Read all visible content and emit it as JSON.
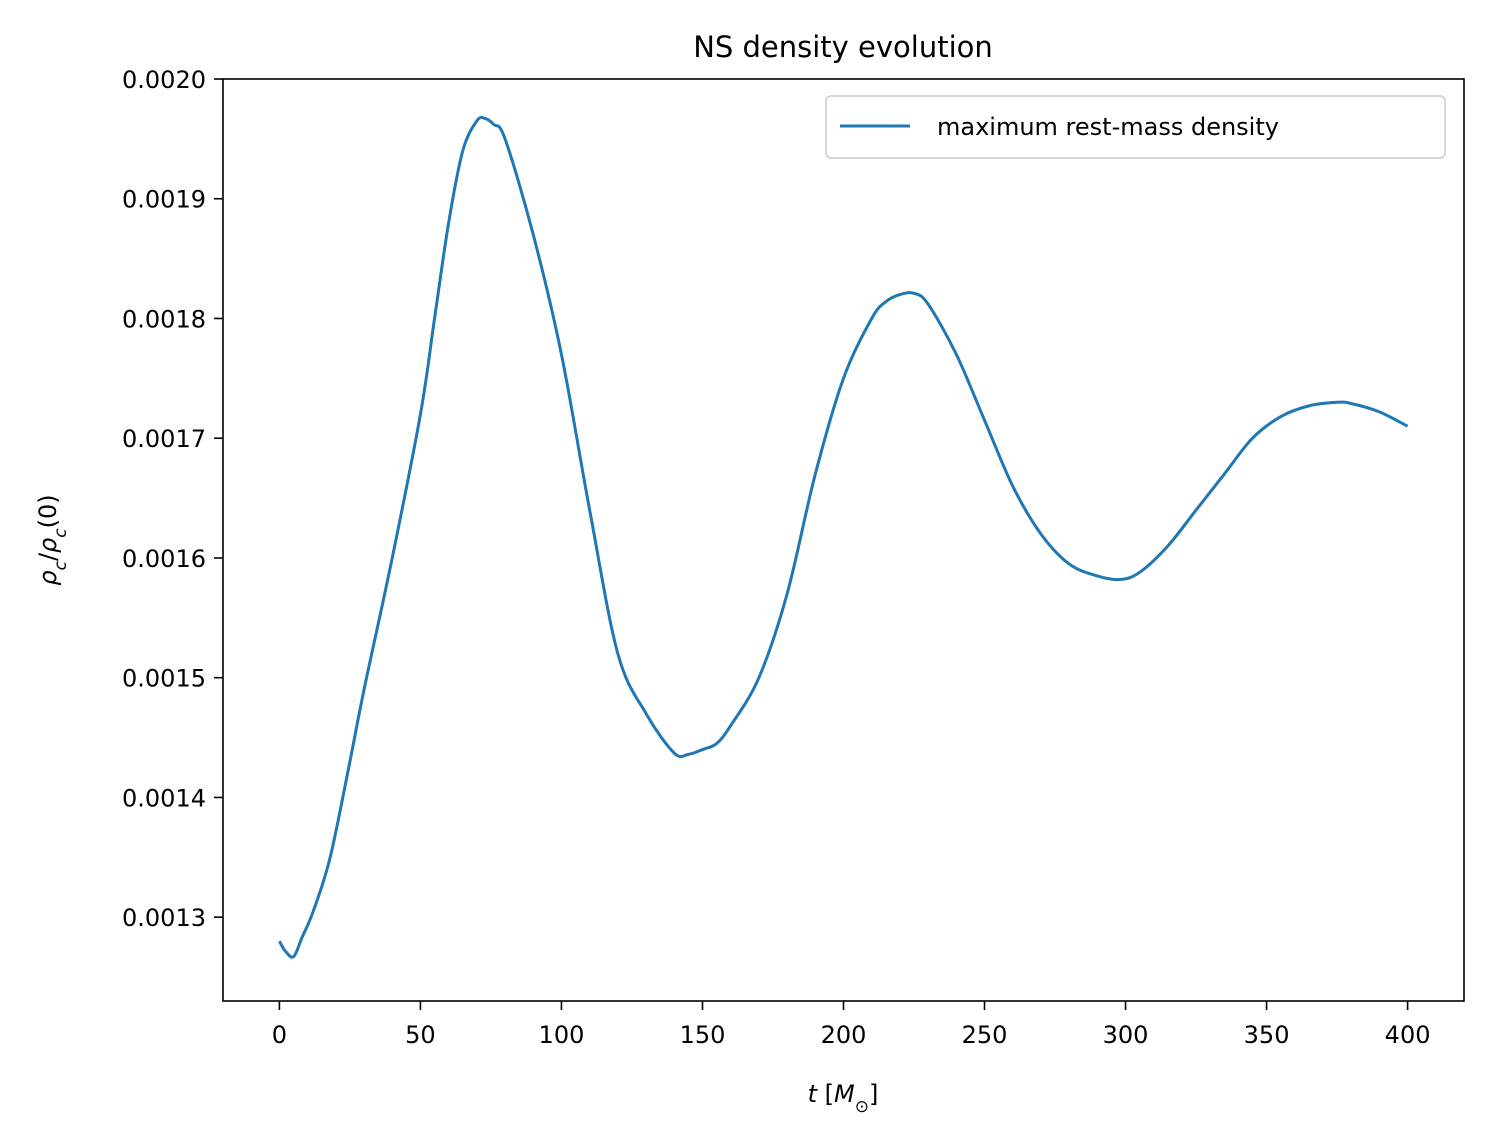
{
  "chart_data": {
    "type": "line",
    "title": "NS density evolution",
    "xlabel": "t [M⊙]",
    "ylabel": "ρc/ρc(0)",
    "xlim": [
      -20,
      420
    ],
    "ylim": [
      0.00123,
      0.002
    ],
    "xticks": [
      0,
      50,
      100,
      150,
      200,
      250,
      300,
      350,
      400
    ],
    "xtick_labels": [
      "0",
      "50",
      "100",
      "150",
      "200",
      "250",
      "300",
      "350",
      "400"
    ],
    "yticks": [
      0.0013,
      0.0014,
      0.0015,
      0.0016,
      0.0017,
      0.0018,
      0.0019,
      0.002
    ],
    "ytick_labels": [
      "0.0013",
      "0.0014",
      "0.0015",
      "0.0016",
      "0.0017",
      "0.0018",
      "0.0019",
      "0.0020"
    ],
    "grid": false,
    "legend_position": "top-right",
    "series": [
      {
        "name": "maximum rest-mass density",
        "color": "#1f77b4",
        "x": [
          0,
          2,
          5,
          8,
          12,
          18,
          25,
          30,
          40,
          50,
          55,
          60,
          65,
          70,
          73,
          76,
          80,
          90,
          100,
          110,
          120,
          130,
          140,
          145,
          150,
          155,
          160,
          170,
          180,
          190,
          200,
          210,
          215,
          220,
          225,
          230,
          240,
          250,
          260,
          270,
          280,
          290,
          298,
          305,
          315,
          325,
          335,
          345,
          355,
          365,
          375,
          380,
          390,
          400
        ],
        "y": [
          0.00128,
          0.001272,
          0.001267,
          0.001283,
          0.001305,
          0.00135,
          0.00143,
          0.00149,
          0.0016,
          0.00172,
          0.0018,
          0.00188,
          0.00194,
          0.001965,
          0.001967,
          0.001962,
          0.00195,
          0.00187,
          0.00177,
          0.00164,
          0.00152,
          0.00147,
          0.001437,
          0.001436,
          0.00144,
          0.001445,
          0.00146,
          0.0015,
          0.00157,
          0.00167,
          0.00175,
          0.0018,
          0.001814,
          0.00182,
          0.001821,
          0.001812,
          0.00177,
          0.001715,
          0.00166,
          0.00162,
          0.001595,
          0.001585,
          0.001582,
          0.001588,
          0.00161,
          0.00164,
          0.00167,
          0.0017,
          0.001718,
          0.001727,
          0.00173,
          0.001729,
          0.001722,
          0.00171
        ]
      }
    ]
  }
}
